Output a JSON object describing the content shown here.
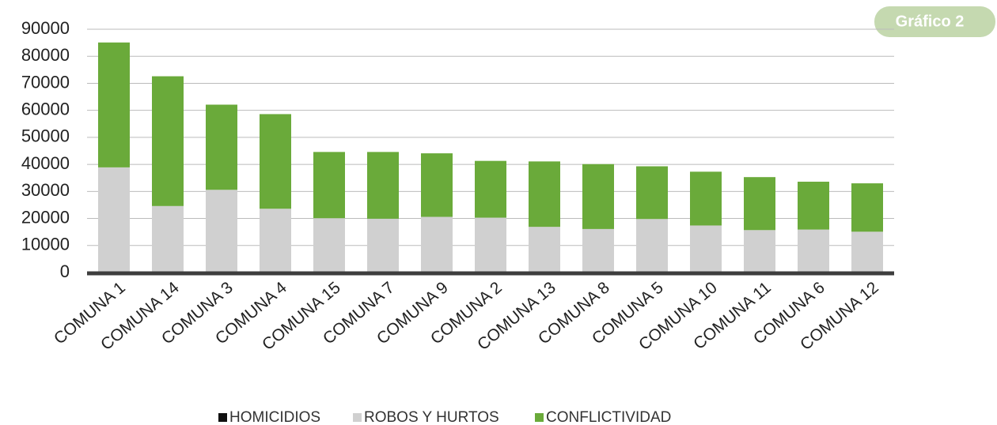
{
  "chart_data": {
    "type": "stacked_bar",
    "badge": "Gráfico 2",
    "categories": [
      "COMUNA 1",
      "COMUNA 14",
      "COMUNA 3",
      "COMUNA 4",
      "COMUNA 15",
      "COMUNA 7",
      "COMUNA 9",
      "COMUNA 2",
      "COMUNA 13",
      "COMUNA 8",
      "COMUNA 5",
      "COMUNA 10",
      "COMUNA 11",
      "COMUNA 6",
      "COMUNA 12"
    ],
    "series": [
      {
        "name": "HOMICIDIOS",
        "color": "#111111",
        "values": [
          100,
          100,
          100,
          100,
          100,
          100,
          100,
          100,
          100,
          100,
          100,
          100,
          100,
          100,
          100
        ]
      },
      {
        "name": "ROBOS Y HURTOS",
        "color": "#d0d0d0",
        "values": [
          38800,
          24500,
          30500,
          23500,
          20000,
          19800,
          20500,
          20200,
          16800,
          16000,
          19700,
          17300,
          15600,
          15800,
          15000
        ]
      },
      {
        "name": "CONFLICTIVIDAD",
        "color": "#6aaa3a",
        "values": [
          46200,
          48000,
          31500,
          35000,
          24500,
          24700,
          23500,
          21000,
          24200,
          24000,
          19500,
          19900,
          19600,
          17700,
          17900
        ]
      }
    ],
    "ylim": [
      0,
      90000
    ],
    "yticks": [
      0,
      10000,
      20000,
      30000,
      40000,
      50000,
      60000,
      70000,
      80000,
      90000
    ],
    "grid": true,
    "legend": "bottom"
  }
}
